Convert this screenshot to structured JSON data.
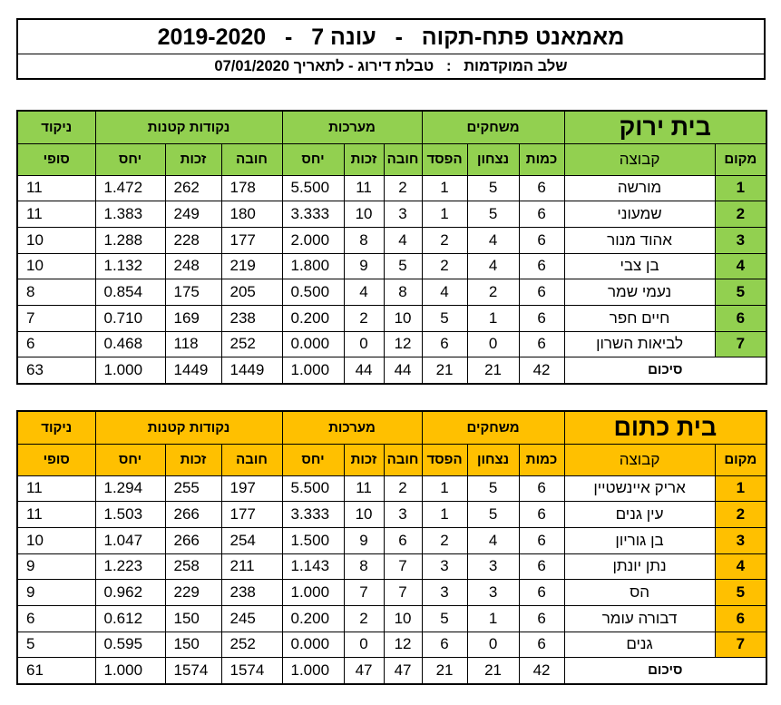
{
  "header": {
    "title": "מאמאנט פתח-תקוה   -   עונה 7   -   2019-2020",
    "subtitle": "שלב המוקדמות   :   טבלת דירוג - לתאריך 07/01/2020"
  },
  "columns": {
    "rank": "מקום",
    "team": "קבוצה",
    "games_group": "משחקים",
    "played": "כמות",
    "won": "נצחון",
    "lost": "הפסד",
    "sets_group": "מערכות",
    "sets_against": "חובה",
    "sets_for": "זכות",
    "sets_ratio": "יחס",
    "points_group": "נקודות קטנות",
    "points_against": "חובה",
    "points_for": "זכות",
    "points_ratio": "יחס",
    "score_top": "ניקוד",
    "score_bottom": "סופי",
    "total_label": "סיכום"
  },
  "houses": [
    {
      "name": "בית ירוק",
      "color": "#92d050",
      "rows": [
        {
          "rank": "1",
          "team": "מורשה",
          "played": "6",
          "won": "5",
          "lost": "1",
          "sets_against": "2",
          "sets_for": "11",
          "sets_ratio": "5.500",
          "points_against": "178",
          "points_for": "262",
          "points_ratio": "1.472",
          "score": "11"
        },
        {
          "rank": "2",
          "team": "שמעוני",
          "played": "6",
          "won": "5",
          "lost": "1",
          "sets_against": "3",
          "sets_for": "10",
          "sets_ratio": "3.333",
          "points_against": "180",
          "points_for": "249",
          "points_ratio": "1.383",
          "score": "11"
        },
        {
          "rank": "3",
          "team": "אהוד מנור",
          "played": "6",
          "won": "4",
          "lost": "2",
          "sets_against": "4",
          "sets_for": "8",
          "sets_ratio": "2.000",
          "points_against": "177",
          "points_for": "228",
          "points_ratio": "1.288",
          "score": "10"
        },
        {
          "rank": "4",
          "team": "בן צבי",
          "played": "6",
          "won": "4",
          "lost": "2",
          "sets_against": "5",
          "sets_for": "9",
          "sets_ratio": "1.800",
          "points_against": "219",
          "points_for": "248",
          "points_ratio": "1.132",
          "score": "10"
        },
        {
          "rank": "5",
          "team": "נעמי שמר",
          "played": "6",
          "won": "2",
          "lost": "4",
          "sets_against": "8",
          "sets_for": "4",
          "sets_ratio": "0.500",
          "points_against": "205",
          "points_for": "175",
          "points_ratio": "0.854",
          "score": "8"
        },
        {
          "rank": "6",
          "team": "חיים חפר",
          "played": "6",
          "won": "1",
          "lost": "5",
          "sets_against": "10",
          "sets_for": "2",
          "sets_ratio": "0.200",
          "points_against": "238",
          "points_for": "169",
          "points_ratio": "0.710",
          "score": "7"
        },
        {
          "rank": "7",
          "team": "לביאות השרון",
          "played": "6",
          "won": "0",
          "lost": "6",
          "sets_against": "12",
          "sets_for": "0",
          "sets_ratio": "0.000",
          "points_against": "252",
          "points_for": "118",
          "points_ratio": "0.468",
          "score": "6"
        }
      ],
      "total": {
        "played": "42",
        "won": "21",
        "lost": "21",
        "sets_against": "44",
        "sets_for": "44",
        "sets_ratio": "1.000",
        "points_against": "1449",
        "points_for": "1449",
        "points_ratio": "1.000",
        "score": "63"
      }
    },
    {
      "name": "בית כתום",
      "color": "#ffc000",
      "rows": [
        {
          "rank": "1",
          "team": "אריק איינשטיין",
          "played": "6",
          "won": "5",
          "lost": "1",
          "sets_against": "2",
          "sets_for": "11",
          "sets_ratio": "5.500",
          "points_against": "197",
          "points_for": "255",
          "points_ratio": "1.294",
          "score": "11"
        },
        {
          "rank": "2",
          "team": "עין גנים",
          "played": "6",
          "won": "5",
          "lost": "1",
          "sets_against": "3",
          "sets_for": "10",
          "sets_ratio": "3.333",
          "points_against": "177",
          "points_for": "266",
          "points_ratio": "1.503",
          "score": "11"
        },
        {
          "rank": "3",
          "team": "בן גוריון",
          "played": "6",
          "won": "4",
          "lost": "2",
          "sets_against": "6",
          "sets_for": "9",
          "sets_ratio": "1.500",
          "points_against": "254",
          "points_for": "266",
          "points_ratio": "1.047",
          "score": "10"
        },
        {
          "rank": "4",
          "team": "נתן יונתן",
          "played": "6",
          "won": "3",
          "lost": "3",
          "sets_against": "7",
          "sets_for": "8",
          "sets_ratio": "1.143",
          "points_against": "211",
          "points_for": "258",
          "points_ratio": "1.223",
          "score": "9"
        },
        {
          "rank": "5",
          "team": "הס",
          "played": "6",
          "won": "3",
          "lost": "3",
          "sets_against": "7",
          "sets_for": "7",
          "sets_ratio": "1.000",
          "points_against": "238",
          "points_for": "229",
          "points_ratio": "0.962",
          "score": "9"
        },
        {
          "rank": "6",
          "team": "דבורה עומר",
          "played": "6",
          "won": "1",
          "lost": "5",
          "sets_against": "10",
          "sets_for": "2",
          "sets_ratio": "0.200",
          "points_against": "245",
          "points_for": "150",
          "points_ratio": "0.612",
          "score": "6"
        },
        {
          "rank": "7",
          "team": "גנים",
          "played": "6",
          "won": "0",
          "lost": "6",
          "sets_against": "12",
          "sets_for": "0",
          "sets_ratio": "0.000",
          "points_against": "252",
          "points_for": "150",
          "points_ratio": "0.595",
          "score": "5"
        }
      ],
      "total": {
        "played": "42",
        "won": "21",
        "lost": "21",
        "sets_against": "47",
        "sets_for": "47",
        "sets_ratio": "1.000",
        "points_against": "1574",
        "points_for": "1574",
        "points_ratio": "1.000",
        "score": "61"
      }
    }
  ]
}
